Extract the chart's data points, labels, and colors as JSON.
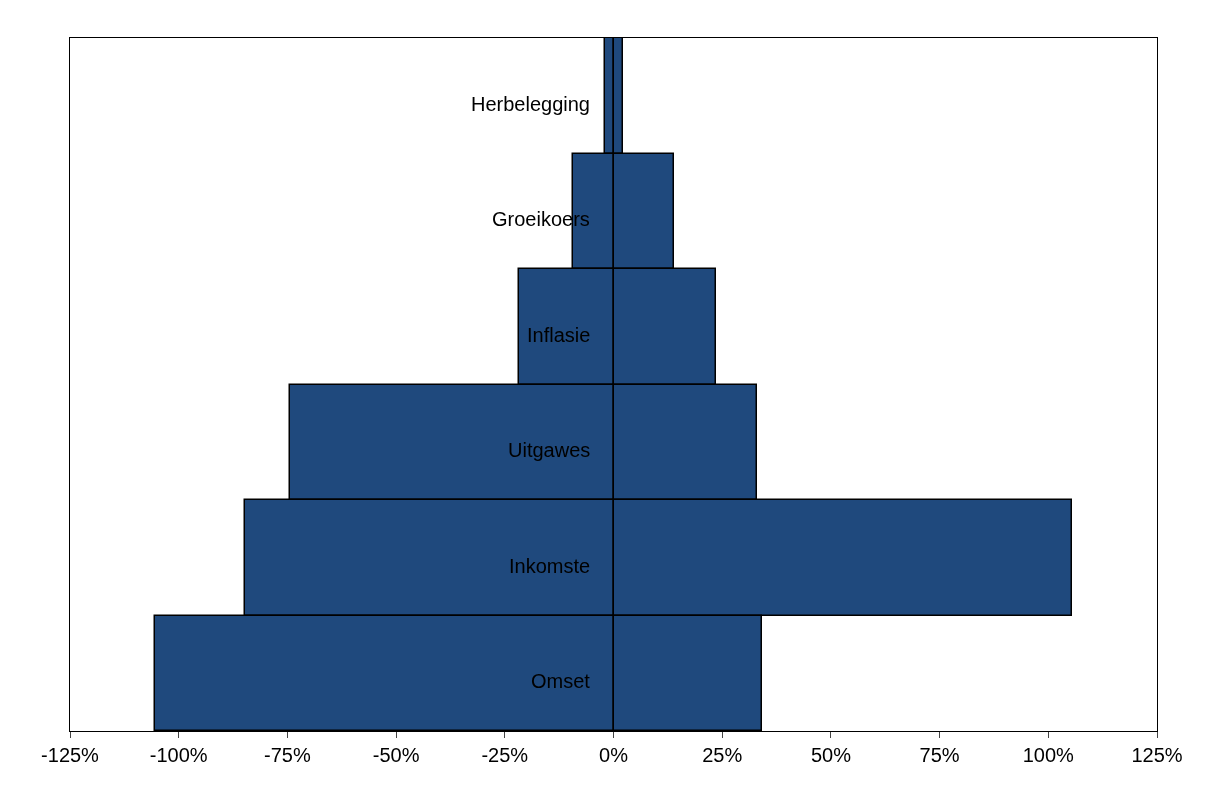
{
  "chart_data": {
    "type": "bar",
    "orientation": "horizontal",
    "categories": [
      "Herbelegging",
      "Groeikoers",
      "Inflasie",
      "Uitgawes",
      "Inkomste",
      "Omset"
    ],
    "series": [
      {
        "color": "#1f497d",
        "values": [
          -2,
          -9.3,
          -21.7,
          -74.4,
          -84.8,
          -105.4
        ]
      },
      {
        "color": "#1f497d",
        "values": [
          2.2,
          13.9,
          23.6,
          33.0,
          105.4,
          34.1
        ]
      }
    ],
    "xlim": [
      -125,
      125
    ],
    "xticks": [
      {
        "value": -125,
        "label": "-125%"
      },
      {
        "value": -100,
        "label": "-100%"
      },
      {
        "value": -75,
        "label": "-75%"
      },
      {
        "value": -50,
        "label": "-50%"
      },
      {
        "value": -25,
        "label": "-25%"
      },
      {
        "value": 0,
        "label": "0%"
      },
      {
        "value": 25,
        "label": "25%"
      },
      {
        "value": 50,
        "label": "50%"
      },
      {
        "value": 75,
        "label": "75%"
      },
      {
        "value": 100,
        "label": "100%"
      },
      {
        "value": 125,
        "label": "125%"
      }
    ],
    "stacked": true,
    "grid": false
  }
}
